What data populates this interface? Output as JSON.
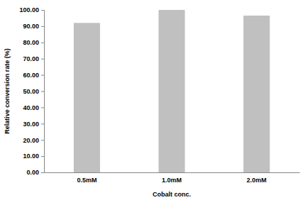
{
  "chart_data": {
    "type": "bar",
    "x_label": "Cobalt conc.",
    "y_label": "Relative conversion rate (%)",
    "categories": [
      "0.5mM",
      "1.0mM",
      "2.0mM"
    ],
    "values": [
      92,
      100,
      96.5
    ],
    "color": "#c0c0c0",
    "ylim": [
      0,
      100
    ],
    "yticks": [
      {
        "value": 0,
        "label": "0.00"
      },
      {
        "value": 10,
        "label": "10.00"
      },
      {
        "value": 20,
        "label": "20.00"
      },
      {
        "value": 30,
        "label": "30.00"
      },
      {
        "value": 40,
        "label": "40.00"
      },
      {
        "value": 50,
        "label": "50.00"
      },
      {
        "value": 60,
        "label": "60.00"
      },
      {
        "value": 70,
        "label": "70.00"
      },
      {
        "value": 80,
        "label": "80.00"
      },
      {
        "value": 90,
        "label": "90.00"
      },
      {
        "value": 100,
        "label": "100.00"
      }
    ],
    "grid": false
  }
}
